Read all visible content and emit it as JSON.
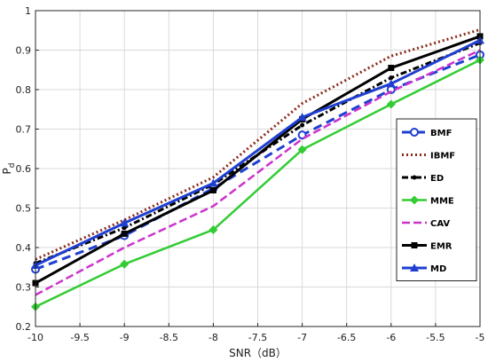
{
  "chart_data": {
    "type": "line",
    "xlabel": "SNR（dB）",
    "ylabel_main": "P",
    "ylabel_sub": "d",
    "xlim": [
      -10,
      -5
    ],
    "ylim": [
      0.2,
      1
    ],
    "x_ticks": [
      -10,
      -9.5,
      -9,
      -8.5,
      -8,
      -7.5,
      -7,
      -6.5,
      -6,
      -5.5,
      -5
    ],
    "y_ticks": [
      0.2,
      0.3,
      0.4,
      0.5,
      0.6,
      0.7,
      0.8,
      0.9,
      1
    ],
    "x_tick_labels": [
      "-10",
      "-9.5",
      "-9",
      "-8.5",
      "-8",
      "-7.5",
      "-7",
      "-6.5",
      "-6",
      "-5.5",
      "-5"
    ],
    "y_tick_labels": [
      "0.2",
      "0.3",
      "0.4",
      "0.5",
      "0.6",
      "0.7",
      "0.8",
      "0.9",
      "1"
    ],
    "grid": true,
    "legend_position": "right",
    "x": [
      -10,
      -9,
      -8,
      -7,
      -6,
      -5
    ],
    "series": [
      {
        "name": "BMF",
        "values": [
          0.345,
          0.43,
          0.55,
          0.685,
          0.8,
          0.888
        ],
        "color": "#1f3fd0",
        "dash": "10,6",
        "marker": "circle-open",
        "width": 3
      },
      {
        "name": "IBMF",
        "values": [
          0.37,
          0.47,
          0.578,
          0.765,
          0.885,
          0.952
        ],
        "color": "#8b2a1a",
        "dash": "2,3",
        "marker": "none",
        "width": 3
      },
      {
        "name": "ED",
        "values": [
          0.36,
          0.45,
          0.56,
          0.71,
          0.83,
          0.918
        ],
        "color": "#000000",
        "dash": "7,3,2,3",
        "marker": "dot",
        "width": 3
      },
      {
        "name": "MME",
        "values": [
          0.25,
          0.358,
          0.445,
          0.648,
          0.763,
          0.875
        ],
        "color": "#33cc33",
        "dash": "",
        "marker": "diamond",
        "width": 2.5
      },
      {
        "name": "CAV",
        "values": [
          0.28,
          0.4,
          0.505,
          0.675,
          0.795,
          0.9
        ],
        "color": "#cc33cc",
        "dash": "9,4",
        "marker": "none",
        "width": 2.5
      },
      {
        "name": "EMR",
        "values": [
          0.31,
          0.435,
          0.545,
          0.725,
          0.855,
          0.935
        ],
        "color": "#000000",
        "dash": "",
        "marker": "square",
        "width": 3
      },
      {
        "name": "MD",
        "values": [
          0.355,
          0.462,
          0.563,
          0.73,
          0.815,
          0.925
        ],
        "color": "#1f3fd0",
        "dash": "",
        "marker": "triangle",
        "width": 3
      }
    ]
  }
}
